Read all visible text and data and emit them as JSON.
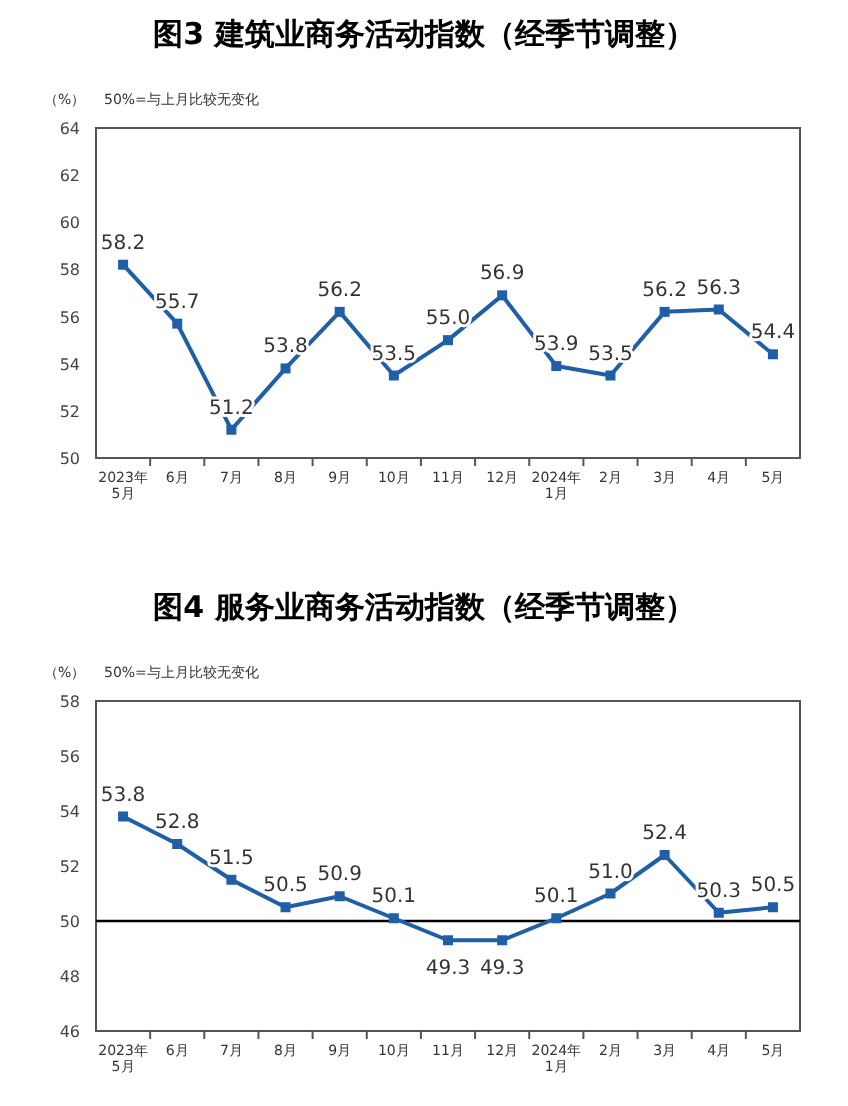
{
  "chart_data": [
    {
      "type": "line",
      "title": "图3  建筑业商务活动指数（经季节调整）",
      "ylabel": "（%）",
      "annotations": [
        "50%=与上月比较无变化"
      ],
      "categories": [
        "2023年\n5月",
        "6月",
        "7月",
        "8月",
        "9月",
        "10月",
        "11月",
        "12月",
        "2024年\n1月",
        "2月",
        "3月",
        "4月",
        "5月"
      ],
      "series": [
        {
          "color": "#1f5fa8",
          "values": [
            58.2,
            55.7,
            51.2,
            53.8,
            56.2,
            53.5,
            55.0,
            56.9,
            53.9,
            53.5,
            56.2,
            56.3,
            54.4
          ],
          "value_labels": [
            "58.2",
            "55.7",
            "51.2",
            "53.8",
            "56.2",
            "53.5",
            "55.0",
            "56.9",
            "53.9",
            "53.5",
            "56.2",
            "56.3",
            "54.4"
          ]
        }
      ],
      "ylim": [
        50,
        64
      ],
      "yticks": [
        50,
        52,
        54,
        56,
        58,
        60,
        62,
        64
      ],
      "marker": "square",
      "grid": false
    },
    {
      "type": "line",
      "title": "图4  服务业商务活动指数（经季节调整）",
      "ylabel": "（%）",
      "annotations": [
        "50%=与上月比较无变化"
      ],
      "categories": [
        "2023年\n5月",
        "6月",
        "7月",
        "8月",
        "9月",
        "10月",
        "11月",
        "12月",
        "2024年\n1月",
        "2月",
        "3月",
        "4月",
        "5月"
      ],
      "series": [
        {
          "color": "#1f5fa8",
          "values": [
            53.8,
            52.8,
            51.5,
            50.5,
            50.9,
            50.1,
            49.3,
            49.3,
            50.1,
            51.0,
            52.4,
            50.3,
            50.5
          ],
          "value_labels": [
            "53.8",
            "52.8",
            "51.5",
            "50.5",
            "50.9",
            "50.1",
            "49.3",
            "49.3",
            "50.1",
            "51.0",
            "52.4",
            "50.3",
            "50.5"
          ]
        }
      ],
      "ylim": [
        46,
        58
      ],
      "yticks": [
        46,
        48,
        50,
        52,
        54,
        56,
        58
      ],
      "marker": "square",
      "grid": false,
      "ref_lines": [
        {
          "axis": "y",
          "value": 50,
          "color": "#000000"
        }
      ]
    }
  ]
}
